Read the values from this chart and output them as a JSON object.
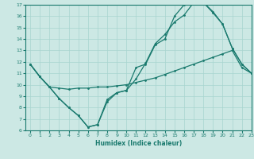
{
  "color": "#1a7a6e",
  "bg_color": "#cce8e4",
  "grid_color": "#a8d4cf",
  "xlabel": "Humidex (Indice chaleur)",
  "ylim": [
    6,
    17
  ],
  "xlim": [
    -0.5,
    23
  ],
  "yticks": [
    6,
    7,
    8,
    9,
    10,
    11,
    12,
    13,
    14,
    15,
    16,
    17
  ],
  "xticks": [
    0,
    1,
    2,
    3,
    4,
    5,
    6,
    7,
    8,
    9,
    10,
    11,
    12,
    13,
    14,
    15,
    16,
    17,
    18,
    19,
    20,
    21,
    22,
    23
  ],
  "line_zigzag_x": [
    0,
    1,
    2,
    3,
    4,
    5,
    6,
    7,
    8,
    9,
    10,
    11,
    12,
    13,
    14,
    15,
    16,
    17,
    18,
    19,
    20,
    21,
    22,
    23
  ],
  "line_zigzag_y": [
    11.8,
    10.7,
    9.8,
    8.8,
    8.0,
    7.3,
    6.3,
    6.5,
    8.7,
    9.3,
    9.5,
    11.5,
    11.8,
    13.5,
    14.0,
    16.0,
    17.0,
    17.2,
    17.2,
    16.3,
    15.3,
    13.2,
    11.8,
    11.0
  ],
  "line_top_x": [
    0,
    1,
    2,
    3,
    4,
    5,
    6,
    7,
    8,
    9,
    10,
    11,
    12,
    13,
    14,
    15,
    16,
    17,
    18,
    19,
    20,
    21,
    22,
    23
  ],
  "line_top_y": [
    11.8,
    10.7,
    9.8,
    8.8,
    8.0,
    7.3,
    6.3,
    6.5,
    8.5,
    9.3,
    9.5,
    10.5,
    11.9,
    13.6,
    14.4,
    15.5,
    16.1,
    17.2,
    17.2,
    16.4,
    15.3,
    13.2,
    11.8,
    11.0
  ],
  "line_flat_x": [
    0,
    1,
    2,
    3,
    4,
    5,
    6,
    7,
    8,
    9,
    10,
    11,
    12,
    13,
    14,
    15,
    16,
    17,
    18,
    19,
    20,
    21,
    22,
    23
  ],
  "line_flat_y": [
    11.8,
    10.7,
    9.8,
    9.7,
    9.6,
    9.7,
    9.7,
    9.8,
    9.8,
    9.9,
    10.0,
    10.2,
    10.4,
    10.6,
    10.9,
    11.2,
    11.5,
    11.8,
    12.1,
    12.4,
    12.7,
    13.0,
    11.5,
    11.0
  ]
}
